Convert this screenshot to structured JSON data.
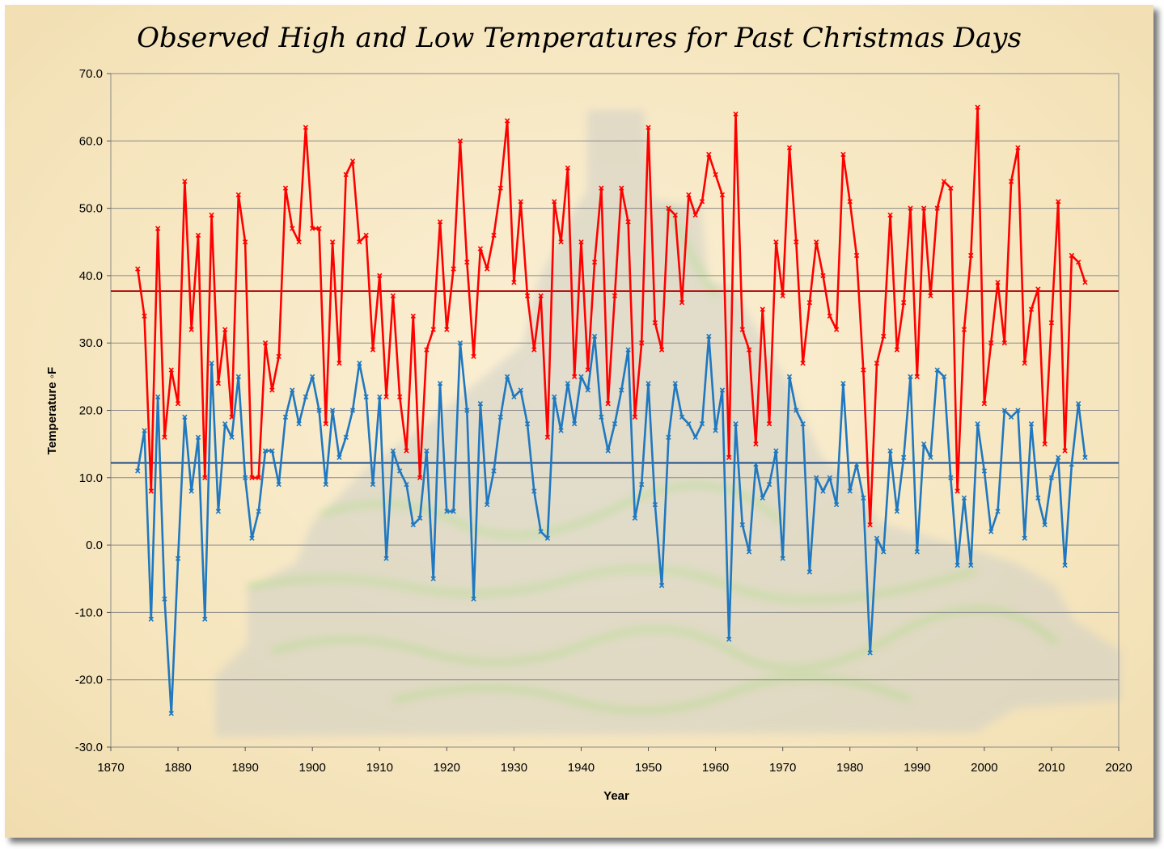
{
  "chart_data": {
    "type": "line",
    "title": "Observed High and Low Temperatures for Past Christmas Days",
    "xlabel": "Year",
    "ylabel": "Temperature ◦F",
    "xlim": [
      1870,
      2020
    ],
    "ylim": [
      -30,
      70
    ],
    "x_ticks": [
      1870,
      1880,
      1890,
      1900,
      1910,
      1920,
      1930,
      1940,
      1950,
      1960,
      1970,
      1980,
      1990,
      2000,
      2010,
      2020
    ],
    "y_ticks": [
      -30,
      -20,
      -10,
      0,
      10,
      20,
      30,
      40,
      50,
      60,
      70
    ],
    "y_tick_format": "one_decimal",
    "grid": "horizontal",
    "legend": "none",
    "x_start": 1874,
    "series": [
      {
        "color": "#ff0000",
        "values": [
          41,
          34,
          8,
          47,
          16,
          26,
          21,
          54,
          32,
          46,
          10,
          49,
          24,
          32,
          19,
          52,
          45,
          10,
          10,
          30,
          23,
          28,
          53,
          47,
          45,
          62,
          47,
          47,
          18,
          45,
          27,
          55,
          57,
          45,
          46,
          29,
          40,
          22,
          37,
          22,
          14,
          34,
          10,
          29,
          32,
          48,
          32,
          41,
          60,
          42,
          28,
          44,
          41,
          46,
          53,
          63,
          39,
          51,
          37,
          29,
          37,
          16,
          51,
          45,
          56,
          25,
          45,
          26,
          42,
          53,
          21,
          37,
          53,
          48,
          19,
          30,
          62,
          33,
          29,
          50,
          49,
          36,
          52,
          49,
          51,
          58,
          55,
          52,
          13,
          64,
          32,
          29,
          15,
          35,
          18,
          45,
          37,
          59,
          45,
          27,
          36,
          45,
          40,
          34,
          32,
          58,
          51,
          43,
          26,
          3,
          27,
          31,
          49,
          29,
          36,
          50,
          25,
          50,
          37,
          50,
          54,
          53,
          8,
          32,
          43,
          65,
          21,
          30,
          39,
          30,
          54,
          59,
          27,
          35,
          38,
          15,
          33,
          51,
          14,
          43,
          42,
          39
        ]
      },
      {
        "color": "#1f78c0",
        "values": [
          11,
          17,
          -11,
          22,
          -8,
          -25,
          -2,
          19,
          8,
          16,
          -11,
          27,
          5,
          18,
          16,
          25,
          10,
          1,
          5,
          14,
          14,
          9,
          19,
          23,
          18,
          22,
          25,
          20,
          9,
          20,
          13,
          16,
          20,
          27,
          22,
          9,
          22,
          -2,
          14,
          11,
          9,
          3,
          4,
          14,
          -5,
          24,
          5,
          5,
          30,
          20,
          -8,
          21,
          6,
          11,
          19,
          25,
          22,
          23,
          18,
          8,
          2,
          1,
          22,
          17,
          24,
          18,
          25,
          23,
          31,
          19,
          14,
          18,
          23,
          29,
          4,
          9,
          24,
          6,
          -6,
          16,
          24,
          19,
          18,
          16,
          18,
          31,
          17,
          23,
          -14,
          18,
          3,
          -1,
          12,
          7,
          9,
          14,
          -2,
          25,
          20,
          18,
          -4,
          10,
          8,
          10,
          6,
          24,
          8,
          12,
          7,
          -16,
          1,
          -1,
          14,
          5,
          13,
          25,
          -1,
          15,
          13,
          26,
          25,
          10,
          -3,
          7,
          -3,
          18,
          11,
          2,
          5,
          20,
          19,
          20,
          1,
          18,
          7,
          3,
          10,
          13,
          -3,
          12,
          21,
          13
        ]
      }
    ],
    "reference_lines": [
      {
        "value": 37.7,
        "color": "#b01818"
      },
      {
        "value": 12.2,
        "color": "#1c4a86"
      }
    ]
  }
}
